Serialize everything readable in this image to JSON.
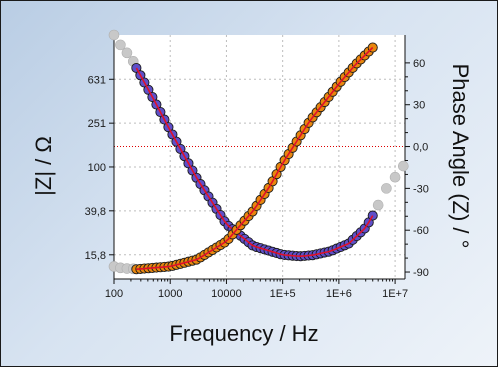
{
  "chart_data": {
    "type": "scatter",
    "title": "",
    "xlabel": "Frequency / Hz",
    "ylabel_left": "|Z| / Ω",
    "ylabel_right": "Phase Angle (Z) / °",
    "x_scale": "log",
    "xlim": [
      100,
      15000000
    ],
    "x_ticks": [
      100,
      1000,
      10000,
      100000,
      1000000,
      10000000
    ],
    "x_tick_labels": [
      "100",
      "1000",
      "10000",
      "1E+5",
      "1E+6",
      "1E+7"
    ],
    "left_scale": "log",
    "left_ylim": [
      9.5,
      1600
    ],
    "left_ticks": [
      15.8,
      39.8,
      100,
      251,
      631
    ],
    "left_tick_labels": [
      "15,8",
      "39,8",
      "100",
      "251",
      "631"
    ],
    "right_ylim": [
      -95,
      80
    ],
    "right_ticks": [
      -90,
      -60,
      -30,
      0,
      30,
      60
    ],
    "right_tick_labels": [
      "-90",
      "-60",
      "-30",
      "0,0",
      "30",
      "60"
    ],
    "grid": true,
    "legend": "none",
    "reference_line": {
      "axis": "right",
      "value": 0,
      "color": "#dd0000"
    },
    "series": [
      {
        "axis": "left",
        "style": "simulated",
        "color": "#c8c8c8",
        "x": [
          100,
          130,
          170,
          220
        ],
        "y": [
          1600,
          1300,
          1100,
          920
        ]
      },
      {
        "axis": "left",
        "style": "measured",
        "color": "#5e4fc9",
        "x": [
          250,
          500,
          1000,
          3000,
          10000,
          30000,
          100000,
          200000,
          350000,
          700000,
          1500000,
          3000000,
          4000000
        ],
        "y": [
          800,
          420,
          215,
          78,
          30,
          19,
          15.8,
          15.3,
          15.7,
          17,
          20,
          28,
          36
        ]
      },
      {
        "axis": "right",
        "style": "simulated",
        "color": "#c8c8c8",
        "x": [
          100,
          130,
          170,
          220,
          5000000,
          7000000,
          10000000,
          14000000
        ],
        "y": [
          -86,
          -87,
          -87.5,
          -87.7,
          -42,
          -30,
          -22,
          -14
        ]
      },
      {
        "axis": "right",
        "style": "measured",
        "color": "#e8870e",
        "x": [
          250,
          1000,
          3000,
          10000,
          30000,
          60000,
          100000,
          300000,
          1000000,
          2000000,
          4000000
        ],
        "y": [
          -88,
          -86,
          -81,
          -68,
          -46,
          -28,
          -12,
          18,
          45,
          59,
          71
        ]
      }
    ]
  }
}
